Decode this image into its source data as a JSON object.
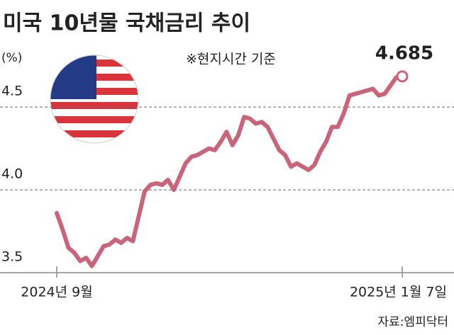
{
  "chart_data": {
    "type": "line",
    "title": "미국 10년물 국채금리 추이",
    "y_label": "(%)",
    "note": "※현지시간 기준",
    "source": "자료:엠피닥터",
    "categories": [
      "2024년 9월",
      null,
      null,
      null,
      null,
      null,
      null,
      null,
      null,
      null,
      null,
      null,
      null,
      null,
      null,
      null,
      null,
      null,
      null,
      null,
      null,
      null,
      null,
      null,
      null,
      null,
      null,
      null,
      null,
      null,
      null,
      null,
      null,
      null,
      null,
      null,
      null,
      null,
      null,
      null,
      null,
      null,
      null,
      null,
      null,
      null,
      null,
      null,
      null,
      null,
      null,
      null,
      null,
      null,
      null,
      null,
      null,
      null,
      null,
      "2025년 1월 7일"
    ],
    "series": [
      {
        "name": "미국 10년물 국채금리",
        "color": "#c9647a",
        "values": [
          3.86,
          3.76,
          3.65,
          3.62,
          3.57,
          3.59,
          3.54,
          3.6,
          3.66,
          3.67,
          3.7,
          3.68,
          3.71,
          3.69,
          3.84,
          3.99,
          4.03,
          4.04,
          4.03,
          4.06,
          4.0,
          4.08,
          4.16,
          4.2,
          4.21,
          4.23,
          4.25,
          4.24,
          4.29,
          4.35,
          4.27,
          4.33,
          4.44,
          4.43,
          4.4,
          4.41,
          4.38,
          4.31,
          4.24,
          4.21,
          4.14,
          4.16,
          4.14,
          4.12,
          4.15,
          4.23,
          4.29,
          4.38,
          4.38,
          4.46,
          4.57,
          4.58,
          4.59,
          4.6,
          4.61,
          4.57,
          4.58,
          4.63,
          4.68,
          4.685
        ]
      }
    ],
    "ylim": [
      3.5,
      4.8
    ],
    "yticks": [
      3.5,
      {
        "value": 4,
        "label": "4.0"
      },
      4.5
    ],
    "grid": true
  }
}
